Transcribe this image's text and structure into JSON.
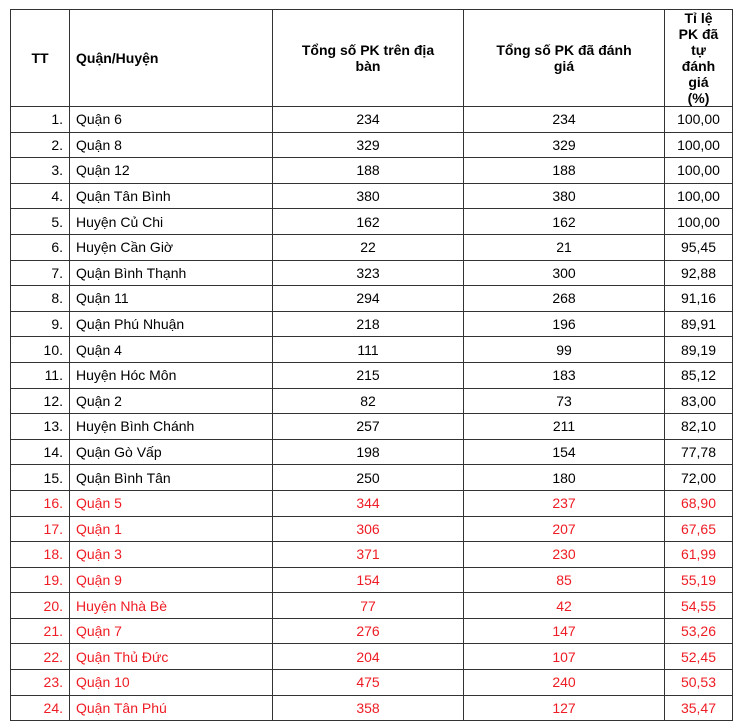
{
  "headers": [
    "TT",
    "Quận/Huyện",
    "Tổng số PK trên địa bàn",
    "Tổng số PK đã đánh giá",
    "Tỉ lệ PK đã tự đánh giá (%)"
  ],
  "colors": {
    "highlight": "#ee1c24",
    "normal": "#000000"
  },
  "rows": [
    {
      "tt": "1.",
      "name": "Quận 6",
      "total": "234",
      "assessed": "234",
      "rate": "100,00",
      "highlight": false
    },
    {
      "tt": "2.",
      "name": "Quận 8",
      "total": "329",
      "assessed": "329",
      "rate": "100,00",
      "highlight": false
    },
    {
      "tt": "3.",
      "name": "Quận 12",
      "total": "188",
      "assessed": "188",
      "rate": "100,00",
      "highlight": false
    },
    {
      "tt": "4.",
      "name": "Quận Tân Bình",
      "total": "380",
      "assessed": "380",
      "rate": "100,00",
      "highlight": false
    },
    {
      "tt": "5.",
      "name": "Huyện Củ Chi",
      "total": "162",
      "assessed": "162",
      "rate": "100,00",
      "highlight": false
    },
    {
      "tt": "6.",
      "name": "Huyện Cần Giờ",
      "total": "22",
      "assessed": "21",
      "rate": "95,45",
      "highlight": false
    },
    {
      "tt": "7.",
      "name": "Quận Bình Thạnh",
      "total": "323",
      "assessed": "300",
      "rate": "92,88",
      "highlight": false
    },
    {
      "tt": "8.",
      "name": "Quận 11",
      "total": "294",
      "assessed": "268",
      "rate": "91,16",
      "highlight": false
    },
    {
      "tt": "9.",
      "name": "Quận Phú Nhuận",
      "total": "218",
      "assessed": "196",
      "rate": "89,91",
      "highlight": false
    },
    {
      "tt": "10.",
      "name": "Quận 4",
      "total": "111",
      "assessed": "99",
      "rate": "89,19",
      "highlight": false
    },
    {
      "tt": "11.",
      "name": "Huyện Hóc Môn",
      "total": "215",
      "assessed": "183",
      "rate": "85,12",
      "highlight": false
    },
    {
      "tt": "12.",
      "name": "Quận 2",
      "total": "82",
      "assessed": "73",
      "rate": "83,00",
      "highlight": false
    },
    {
      "tt": "13.",
      "name": "Huyện Bình Chánh",
      "total": "257",
      "assessed": "211",
      "rate": "82,10",
      "highlight": false
    },
    {
      "tt": "14.",
      "name": "Quận Gò Vấp",
      "total": "198",
      "assessed": "154",
      "rate": "77,78",
      "highlight": false
    },
    {
      "tt": "15.",
      "name": "Quận Bình Tân",
      "total": "250",
      "assessed": "180",
      "rate": "72,00",
      "highlight": false
    },
    {
      "tt": "16.",
      "name": "Quận 5",
      "total": "344",
      "assessed": "237",
      "rate": "68,90",
      "highlight": true
    },
    {
      "tt": "17.",
      "name": "Quận 1",
      "total": "306",
      "assessed": "207",
      "rate": "67,65",
      "highlight": true
    },
    {
      "tt": "18.",
      "name": "Quận 3",
      "total": "371",
      "assessed": "230",
      "rate": "61,99",
      "highlight": true
    },
    {
      "tt": "19.",
      "name": "Quận 9",
      "total": "154",
      "assessed": "85",
      "rate": "55,19",
      "highlight": true
    },
    {
      "tt": "20.",
      "name": "Huyện Nhà Bè",
      "total": "77",
      "assessed": "42",
      "rate": "54,55",
      "highlight": true
    },
    {
      "tt": "21.",
      "name": "Quận 7",
      "total": "276",
      "assessed": "147",
      "rate": "53,26",
      "highlight": true
    },
    {
      "tt": "22.",
      "name": "Quận Thủ Đức",
      "total": "204",
      "assessed": "107",
      "rate": "52,45",
      "highlight": true
    },
    {
      "tt": "23.",
      "name": "Quận 10",
      "total": "475",
      "assessed": "240",
      "rate": "50,53",
      "highlight": true
    },
    {
      "tt": "24.",
      "name": "Quận Tân Phú",
      "total": "358",
      "assessed": "127",
      "rate": "35,47",
      "highlight": true
    }
  ]
}
